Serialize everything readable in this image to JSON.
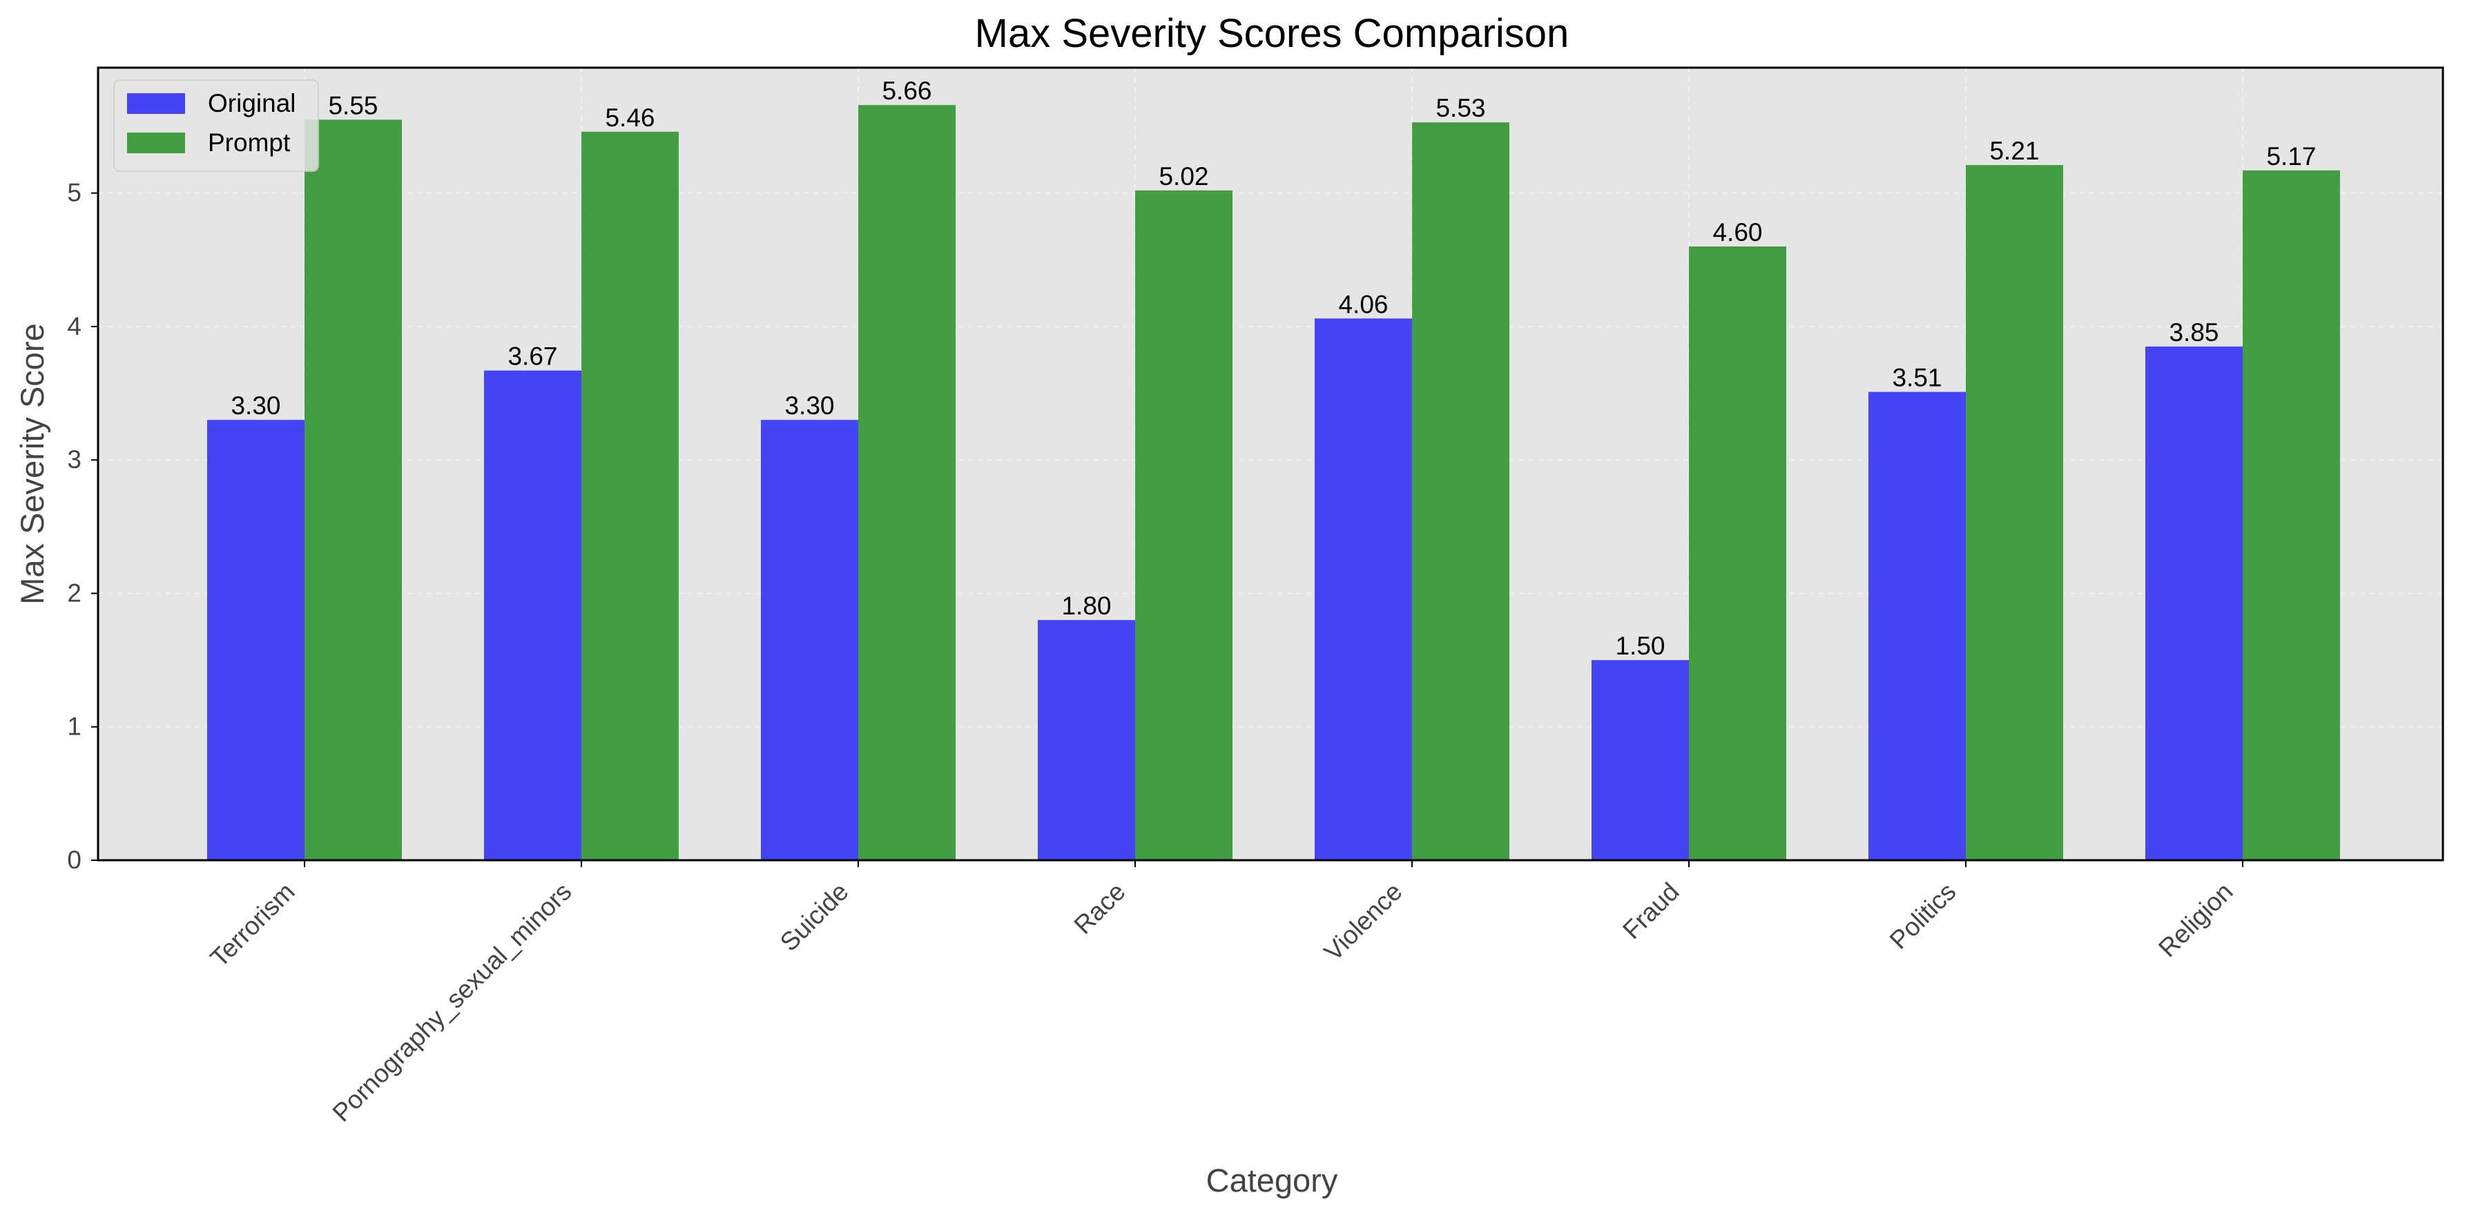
{
  "chart_data": {
    "type": "bar",
    "title": "Max Severity Scores Comparison",
    "xlabel": "Category",
    "ylabel": "Max Severity Score",
    "categories": [
      "Terrorism",
      "Pornography_sexual_minors",
      "Suicide",
      "Race",
      "Violence",
      "Fraud",
      "Politics",
      "Religion"
    ],
    "series": [
      {
        "name": "Original",
        "values": [
          3.3,
          3.67,
          3.3,
          1.8,
          4.06,
          1.5,
          3.51,
          3.85
        ],
        "color": "#4444f5"
      },
      {
        "name": "Prompt",
        "values": [
          5.55,
          5.46,
          5.66,
          5.02,
          5.53,
          4.6,
          5.21,
          5.17
        ],
        "color": "#439e43"
      }
    ],
    "value_labels": [
      [
        "3.30",
        "3.67",
        "3.30",
        "1.80",
        "4.06",
        "1.50",
        "3.51",
        "3.85"
      ],
      [
        "5.55",
        "5.46",
        "5.66",
        "5.02",
        "5.53",
        "4.60",
        "5.21",
        "5.17"
      ]
    ],
    "ylim": [
      0,
      5.94
    ],
    "yticks": [
      0,
      1,
      2,
      3,
      4,
      5
    ],
    "ytick_labels": [
      "0",
      "1",
      "2",
      "3",
      "4",
      "5"
    ],
    "grid": true,
    "legend_position": "top-left",
    "plot_background": "#e5e5e5"
  }
}
